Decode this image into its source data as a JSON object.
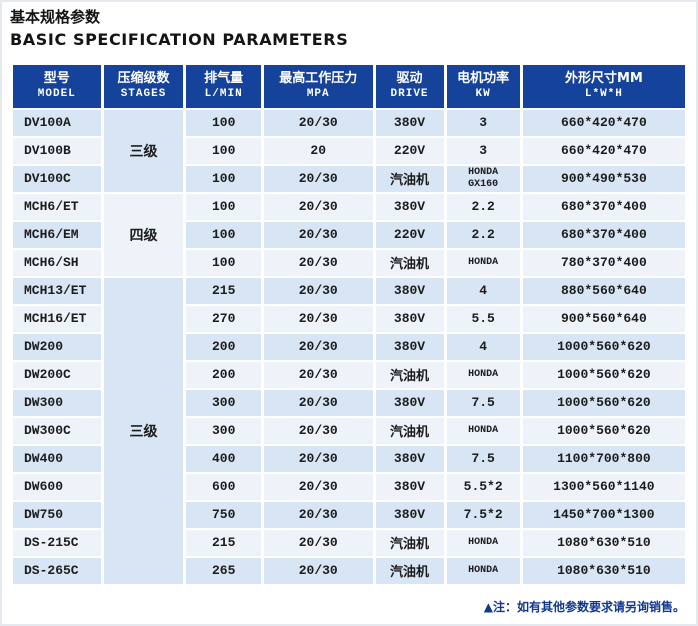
{
  "page": {
    "title_zh": "基本规格参数",
    "title_en": "BASIC SPECIFICATION PARAMETERS",
    "note": "▲注：如有其他参数要求请另询销售。"
  },
  "colors": {
    "header_bg": "#15429a",
    "header_text": "#ffffff",
    "row_odd_bg": "#d8e5f4",
    "row_even_bg": "#eef3fa",
    "note_text": "#12388e",
    "title_text": "#141414"
  },
  "table": {
    "columns": [
      {
        "zh": "型号",
        "en": "MODEL"
      },
      {
        "zh": "压缩级数",
        "en": "STAGES"
      },
      {
        "zh": "排气量",
        "en": "L/MIN"
      },
      {
        "zh": "最高工作压力",
        "en": "MPA"
      },
      {
        "zh": "驱动",
        "en": "DRIVE"
      },
      {
        "zh": "电机功率",
        "en": "KW"
      },
      {
        "zh": "外形尺寸MM",
        "en": "L*W*H"
      }
    ],
    "stage_groups": [
      {
        "label": "三级",
        "rows": 3,
        "shade": "blue"
      },
      {
        "label": "四级",
        "rows": 3,
        "shade": "light"
      },
      {
        "label": "三级",
        "rows": 11,
        "shade": "blue"
      }
    ],
    "rows": [
      {
        "model": "DV100A",
        "lmin": "100",
        "mpa": "20/30",
        "drive": "380V",
        "kw": "3",
        "kw_small": false,
        "dims": "660*420*470"
      },
      {
        "model": "DV100B",
        "lmin": "100",
        "mpa": "20",
        "drive": "220V",
        "kw": "3",
        "kw_small": false,
        "dims": "660*420*470"
      },
      {
        "model": "DV100C",
        "lmin": "100",
        "mpa": "20/30",
        "drive": "汽油机",
        "kw": "HONDA\nGX160",
        "kw_small": true,
        "dims": "900*490*530"
      },
      {
        "model": "MCH6/ET",
        "lmin": "100",
        "mpa": "20/30",
        "drive": "380V",
        "kw": "2.2",
        "kw_small": false,
        "dims": "680*370*400"
      },
      {
        "model": "MCH6/EM",
        "lmin": "100",
        "mpa": "20/30",
        "drive": "220V",
        "kw": "2.2",
        "kw_small": false,
        "dims": "680*370*400"
      },
      {
        "model": "MCH6/SH",
        "lmin": "100",
        "mpa": "20/30",
        "drive": "汽油机",
        "kw": "HONDA",
        "kw_small": true,
        "dims": "780*370*400"
      },
      {
        "model": "MCH13/ET",
        "lmin": "215",
        "mpa": "20/30",
        "drive": "380V",
        "kw": "4",
        "kw_small": false,
        "dims": "880*560*640"
      },
      {
        "model": "MCH16/ET",
        "lmin": "270",
        "mpa": "20/30",
        "drive": "380V",
        "kw": "5.5",
        "kw_small": false,
        "dims": "900*560*640"
      },
      {
        "model": "DW200",
        "lmin": "200",
        "mpa": "20/30",
        "drive": "380V",
        "kw": "4",
        "kw_small": false,
        "dims": "1000*560*620"
      },
      {
        "model": "DW200C",
        "lmin": "200",
        "mpa": "20/30",
        "drive": "汽油机",
        "kw": "HONDA",
        "kw_small": true,
        "dims": "1000*560*620"
      },
      {
        "model": "DW300",
        "lmin": "300",
        "mpa": "20/30",
        "drive": "380V",
        "kw": "7.5",
        "kw_small": false,
        "dims": "1000*560*620"
      },
      {
        "model": "DW300C",
        "lmin": "300",
        "mpa": "20/30",
        "drive": "汽油机",
        "kw": "HONDA",
        "kw_small": true,
        "dims": "1000*560*620"
      },
      {
        "model": "DW400",
        "lmin": "400",
        "mpa": "20/30",
        "drive": "380V",
        "kw": "7.5",
        "kw_small": false,
        "dims": "1100*700*800"
      },
      {
        "model": "DW600",
        "lmin": "600",
        "mpa": "20/30",
        "drive": "380V",
        "kw": "5.5*2",
        "kw_small": false,
        "dims": "1300*560*1140"
      },
      {
        "model": "DW750",
        "lmin": "750",
        "mpa": "20/30",
        "drive": "380V",
        "kw": "7.5*2",
        "kw_small": false,
        "dims": "1450*700*1300"
      },
      {
        "model": "DS-215C",
        "lmin": "215",
        "mpa": "20/30",
        "drive": "汽油机",
        "kw": "HONDA",
        "kw_small": true,
        "dims": "1080*630*510"
      },
      {
        "model": "DS-265C",
        "lmin": "265",
        "mpa": "20/30",
        "drive": "汽油机",
        "kw": "HONDA",
        "kw_small": true,
        "dims": "1080*630*510"
      }
    ]
  }
}
